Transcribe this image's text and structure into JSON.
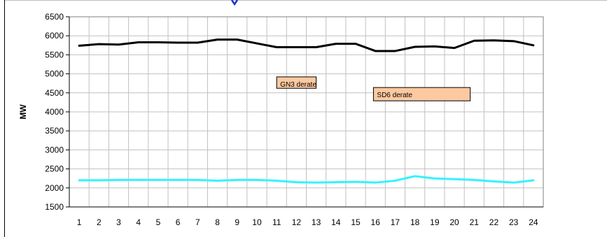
{
  "chart_data": {
    "type": "line",
    "title": "",
    "xlabel": "",
    "ylabel": "MW",
    "ylim": [
      1500,
      6500
    ],
    "y_ticks": [
      1500,
      2000,
      2500,
      3000,
      3500,
      4000,
      4500,
      5000,
      5500,
      6000,
      6500
    ],
    "x": [
      1,
      2,
      3,
      4,
      5,
      6,
      7,
      8,
      9,
      10,
      11,
      12,
      13,
      14,
      15,
      16,
      17,
      18,
      19,
      20,
      21,
      22,
      23,
      24
    ],
    "grid": true,
    "series": [
      {
        "color": "#000000",
        "values": [
          5740,
          5780,
          5770,
          5830,
          5830,
          5820,
          5820,
          5900,
          5900,
          5800,
          5700,
          5700,
          5700,
          5790,
          5790,
          5600,
          5600,
          5710,
          5720,
          5680,
          5870,
          5880,
          5860,
          5750
        ]
      },
      {
        "color": "#33f3ff",
        "values": [
          2200,
          2200,
          2210,
          2210,
          2210,
          2210,
          2210,
          2190,
          2210,
          2210,
          2190,
          2150,
          2140,
          2150,
          2160,
          2140,
          2190,
          2310,
          2250,
          2230,
          2210,
          2170,
          2140,
          2200
        ]
      }
    ],
    "annotations": [
      {
        "text": "GN3 derate",
        "x_start": 11,
        "x_end": 13,
        "y_top": 4920,
        "y_bottom": 4620
      },
      {
        "text": "SD6 derate",
        "x_start": 15.9,
        "x_end": 20.8,
        "y_top": 4640,
        "y_bottom": 4290
      }
    ]
  }
}
